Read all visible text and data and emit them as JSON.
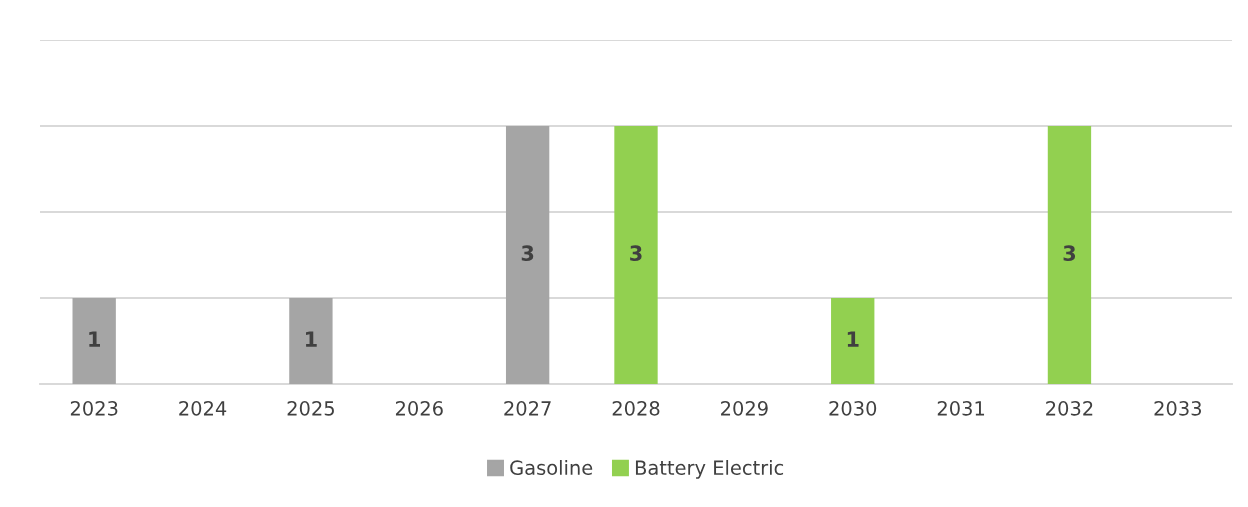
{
  "chart_data": {
    "type": "bar",
    "stacked": true,
    "categories": [
      "2023",
      "2024",
      "2025",
      "2026",
      "2027",
      "2028",
      "2029",
      "2030",
      "2031",
      "2032",
      "2033"
    ],
    "series": [
      {
        "name": "Gasoline",
        "color": "#a5a5a5",
        "values": [
          1,
          null,
          1,
          null,
          3,
          null,
          null,
          null,
          null,
          null,
          null
        ]
      },
      {
        "name": "Battery Electric",
        "color": "#92d050",
        "values": [
          null,
          null,
          null,
          null,
          null,
          3,
          null,
          1,
          null,
          3,
          null
        ]
      }
    ],
    "ylim": [
      0,
      4
    ],
    "yticks": [
      {
        "value": 0,
        "label": null
      },
      {
        "value": 1,
        "label": null
      },
      {
        "value": 2,
        "label": null
      },
      {
        "value": 3,
        "label": null
      },
      {
        "value": 4,
        "label": null
      }
    ],
    "grid": "y",
    "tick_labels": "x",
    "data_labels": true,
    "legend": "bottom"
  }
}
